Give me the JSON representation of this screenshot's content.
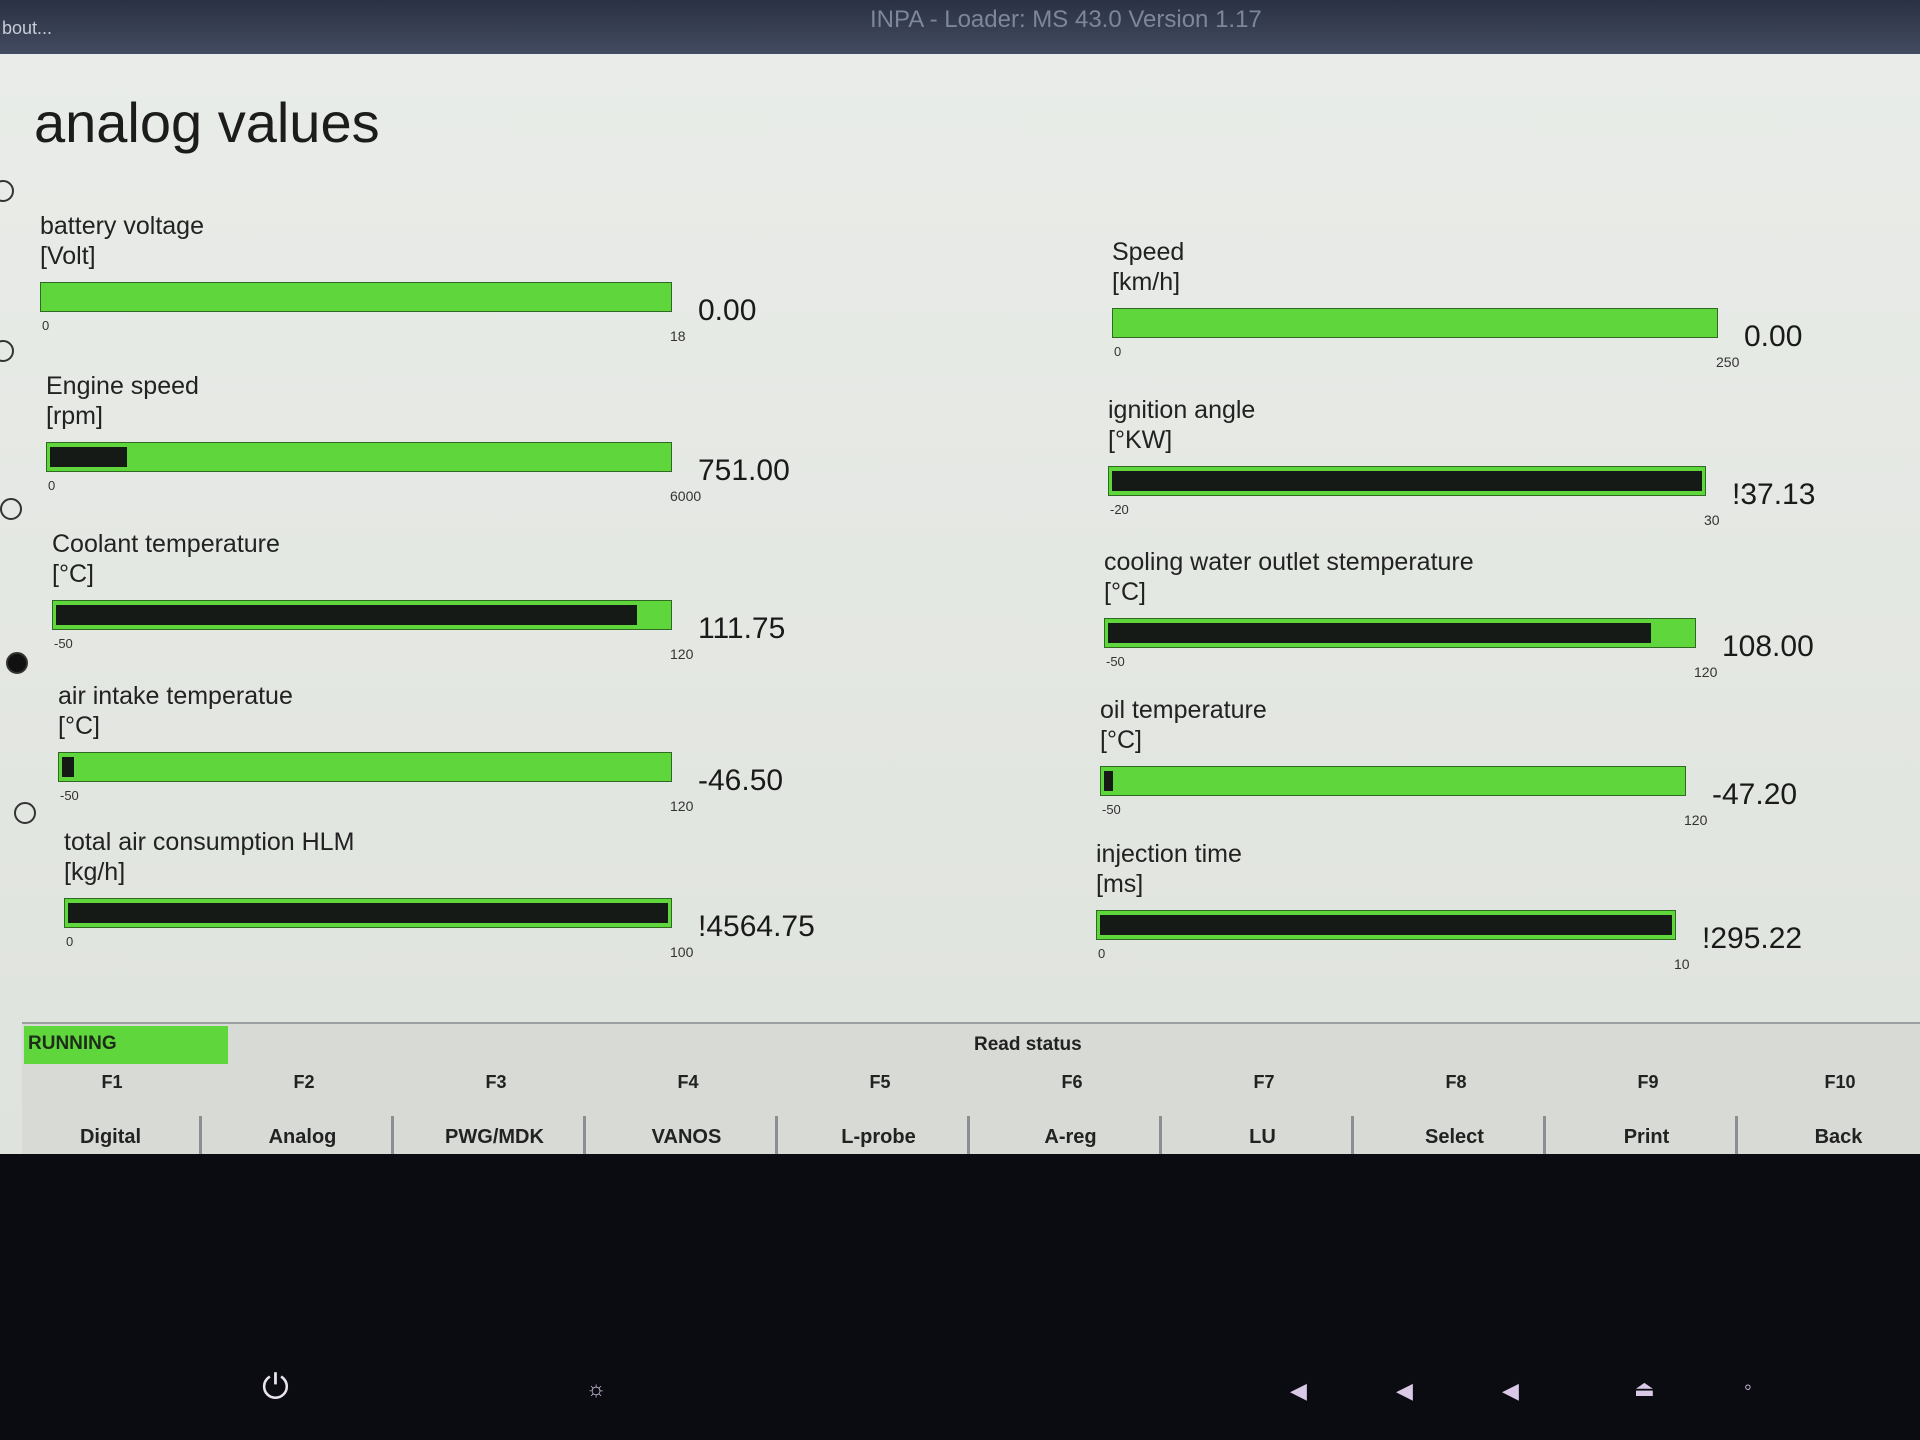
{
  "titlebar": {
    "menu": "bout...",
    "title": "INPA - Loader: MS 43.0 Version 1.17"
  },
  "page": {
    "title": "analog values"
  },
  "gauges": [
    {
      "label": "battery voltage",
      "unit": "[Volt]",
      "min": "0",
      "max": "18",
      "value": "0.00",
      "dark_fill": 0.0
    },
    {
      "label": "Engine speed",
      "unit": "[rpm]",
      "min": "0",
      "max": "6000",
      "value": "751.00",
      "dark_fill": 0.125
    },
    {
      "label": "Coolant temperature",
      "unit": "[°C]",
      "min": "-50",
      "max": "120",
      "value": "111.75",
      "dark_fill": 0.95
    },
    {
      "label": "air intake temperatue",
      "unit": "[°C]",
      "min": "-50",
      "max": "120",
      "value": "-46.50",
      "dark_fill": 0.02
    },
    {
      "label": "total air consumption HLM",
      "unit": "[kg/h]",
      "min": "0",
      "max": "100",
      "value": "!4564.75",
      "dark_fill": 1.0
    },
    {
      "label": "Speed",
      "unit": "[km/h]",
      "min": "0",
      "max": "250",
      "value": "0.00",
      "dark_fill": 0.0
    },
    {
      "label": "ignition angle",
      "unit": "[°KW]",
      "min": "-20",
      "max": "30",
      "value": "!37.13",
      "dark_fill": 1.0
    },
    {
      "label": "cooling water outlet stemperature",
      "unit": "[°C]",
      "min": "-50",
      "max": "120",
      "value": "108.00",
      "dark_fill": 0.93
    },
    {
      "label": "oil temperature",
      "unit": "[°C]",
      "min": "-50",
      "max": "120",
      "value": "-47.20",
      "dark_fill": 0.015
    },
    {
      "label": "injection time",
      "unit": "[ms]",
      "min": "0",
      "max": "10",
      "value": "!295.22",
      "dark_fill": 1.0
    }
  ],
  "status": {
    "state": "RUNNING",
    "center": "Read status"
  },
  "fkeys": [
    {
      "code": "F1",
      "label": "Digital"
    },
    {
      "code": "F2",
      "label": "Analog"
    },
    {
      "code": "F3",
      "label": "PWG/MDK"
    },
    {
      "code": "F4",
      "label": "VANOS"
    },
    {
      "code": "F5",
      "label": "L-probe"
    },
    {
      "code": "F6",
      "label": "A-reg"
    },
    {
      "code": "F7",
      "label": "LU"
    },
    {
      "code": "F8",
      "label": "Select"
    },
    {
      "code": "F9",
      "label": "Print"
    },
    {
      "code": "F10",
      "label": "Back"
    }
  ],
  "colors": {
    "bar_green": "#5fd73c",
    "bar_dark": "#161a16",
    "window_bg": "#e9ece8"
  },
  "bezel_icons": [
    "power-icon",
    "brightness-icon",
    "mute-icon",
    "volume-down-icon",
    "volume-up-icon",
    "eject-icon",
    "wireless-icon"
  ]
}
